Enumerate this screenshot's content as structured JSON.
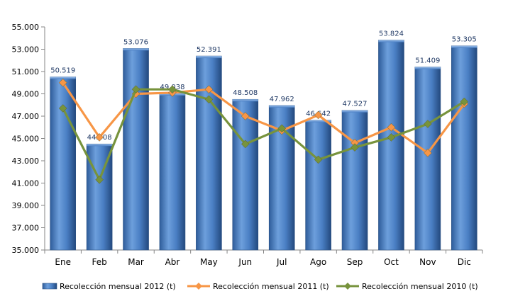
{
  "chart_data": {
    "type": "bar",
    "categories": [
      "Ene",
      "Feb",
      "Mar",
      "Abr",
      "May",
      "Jun",
      "Jul",
      "Ago",
      "Sep",
      "Oct",
      "Nov",
      "Dic"
    ],
    "series": [
      {
        "name": "Recolección mensual 2012 (t)",
        "type": "bar",
        "color": "#4f81bd",
        "values": [
          50519,
          44508,
          53076,
          49038,
          52391,
          48508,
          47962,
          46642,
          47527,
          53824,
          51409,
          53305
        ],
        "labels": [
          "50.519",
          "44.508",
          "53.076",
          "49.038",
          "52.391",
          "48.508",
          "47.962",
          "46.642",
          "47.527",
          "53.824",
          "51.409",
          "53.305"
        ]
      },
      {
        "name": "Recolección mensual 2011 (t)",
        "type": "line",
        "color": "#f79646",
        "marker": "diamond",
        "values": [
          50000,
          45100,
          49000,
          49100,
          49400,
          47000,
          45700,
          47100,
          44600,
          46000,
          43700,
          48100
        ]
      },
      {
        "name": "Recolección mensual 2010 (t)",
        "type": "line",
        "color": "#77933c",
        "marker": "diamond",
        "values": [
          47700,
          41300,
          49400,
          49400,
          48500,
          44500,
          45900,
          43100,
          44200,
          45100,
          46300,
          48300
        ]
      }
    ],
    "ylim": [
      35000,
      55000
    ],
    "yticks": [
      35000,
      37000,
      39000,
      41000,
      43000,
      45000,
      47000,
      49000,
      51000,
      53000,
      55000
    ],
    "ytick_labels": [
      "35.000",
      "37.000",
      "39.000",
      "41.000",
      "43.000",
      "45.000",
      "47.000",
      "49.000",
      "51.000",
      "53.000",
      "55.000"
    ],
    "title": "",
    "xlabel": "",
    "ylabel": "",
    "grid": false,
    "legend_position": "bottom"
  }
}
